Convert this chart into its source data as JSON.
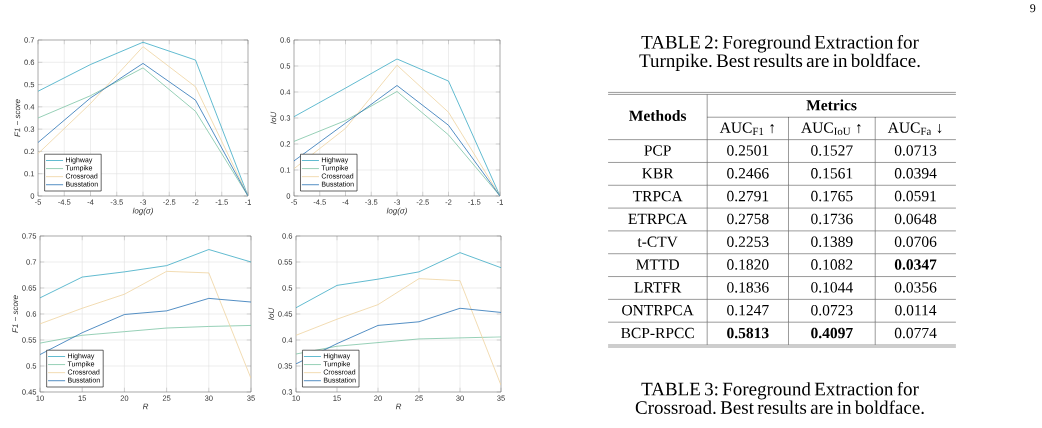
{
  "chart_data": [
    {
      "type": "line",
      "xlabel": "log(σ)",
      "ylabel": "F1 − score",
      "x": [
        -5,
        -4,
        -3,
        -2,
        -1
      ],
      "xlim": [
        -5,
        -1
      ],
      "xticks": [
        -5,
        -4.5,
        -4,
        -3.5,
        -3,
        -2.5,
        -2,
        -1.5,
        -1
      ],
      "ylim": [
        0,
        0.7
      ],
      "yticks": [
        0,
        0.1,
        0.2,
        0.3,
        0.4,
        0.5,
        0.6,
        0.7
      ],
      "grid": true,
      "legend": "bottom left",
      "series": [
        {
          "name": "Highway",
          "color": "#3aa9c4",
          "values": [
            0.47,
            0.59,
            0.69,
            0.61,
            0
          ]
        },
        {
          "name": "Turnpike",
          "color": "#7cc4a4",
          "values": [
            0.35,
            0.45,
            0.575,
            0.38,
            0
          ]
        },
        {
          "name": "Crossroad",
          "color": "#efd3a0",
          "values": [
            0.19,
            0.415,
            0.67,
            0.49,
            0
          ]
        },
        {
          "name": "Busstation",
          "color": "#2872b5",
          "values": [
            0.24,
            0.44,
            0.595,
            0.43,
            0
          ]
        }
      ]
    },
    {
      "type": "line",
      "xlabel": "log(σ)",
      "ylabel": "IoU",
      "x": [
        -5,
        -4,
        -3,
        -2,
        -1
      ],
      "xlim": [
        -5,
        -1
      ],
      "xticks": [
        -5,
        -4.5,
        -4,
        -3.5,
        -3,
        -2.5,
        -2,
        -1.5,
        -1
      ],
      "ylim": [
        0,
        0.6
      ],
      "yticks": [
        0,
        0.1,
        0.2,
        0.3,
        0.4,
        0.5,
        0.6
      ],
      "grid": true,
      "legend": "bottom left",
      "series": [
        {
          "name": "Highway",
          "color": "#3aa9c4",
          "values": [
            0.305,
            0.415,
            0.527,
            0.442,
            0
          ]
        },
        {
          "name": "Turnpike",
          "color": "#7cc4a4",
          "values": [
            0.21,
            0.29,
            0.402,
            0.235,
            0
          ]
        },
        {
          "name": "Crossroad",
          "color": "#efd3a0",
          "values": [
            0.105,
            0.26,
            0.503,
            0.322,
            0
          ]
        },
        {
          "name": "Busstation",
          "color": "#2872b5",
          "values": [
            0.135,
            0.28,
            0.425,
            0.272,
            0
          ]
        }
      ]
    },
    {
      "type": "line",
      "xlabel": "R",
      "ylabel": "F1 − score",
      "x": [
        10,
        15,
        20,
        25,
        30,
        35
      ],
      "xlim": [
        10,
        35
      ],
      "xticks": [
        10,
        15,
        20,
        25,
        30,
        35
      ],
      "ylim": [
        0.45,
        0.75
      ],
      "yticks": [
        0.45,
        0.5,
        0.55,
        0.6,
        0.65,
        0.7,
        0.75
      ],
      "grid": true,
      "legend": "bottom left",
      "series": [
        {
          "name": "Highway",
          "color": "#3aa9c4",
          "values": [
            0.631,
            0.671,
            0.681,
            0.693,
            0.724,
            0.7
          ]
        },
        {
          "name": "Turnpike",
          "color": "#7cc4a4",
          "values": [
            0.544,
            0.559,
            0.566,
            0.573,
            0.576,
            0.578
          ]
        },
        {
          "name": "Crossroad",
          "color": "#efd3a0",
          "values": [
            0.581,
            0.611,
            0.638,
            0.682,
            0.679,
            0.476
          ]
        },
        {
          "name": "Busstation",
          "color": "#2872b5",
          "values": [
            0.522,
            0.564,
            0.599,
            0.606,
            0.63,
            0.623
          ]
        }
      ]
    },
    {
      "type": "line",
      "xlabel": "R",
      "ylabel": "IoU",
      "x": [
        10,
        15,
        20,
        25,
        30,
        35
      ],
      "xlim": [
        10,
        35
      ],
      "xticks": [
        10,
        15,
        20,
        25,
        30,
        35
      ],
      "ylim": [
        0.3,
        0.6
      ],
      "yticks": [
        0.3,
        0.35,
        0.4,
        0.45,
        0.5,
        0.55,
        0.6
      ],
      "grid": true,
      "legend": "bottom left",
      "series": [
        {
          "name": "Highway",
          "color": "#3aa9c4",
          "values": [
            0.462,
            0.505,
            0.517,
            0.531,
            0.568,
            0.539
          ]
        },
        {
          "name": "Turnpike",
          "color": "#7cc4a4",
          "values": [
            0.373,
            0.388,
            0.395,
            0.402,
            0.404,
            0.406
          ]
        },
        {
          "name": "Crossroad",
          "color": "#efd3a0",
          "values": [
            0.409,
            0.44,
            0.468,
            0.518,
            0.514,
            0.313
          ]
        },
        {
          "name": "Busstation",
          "color": "#2872b5",
          "values": [
            0.354,
            0.393,
            0.428,
            0.435,
            0.461,
            0.453
          ]
        }
      ]
    },
    {
      "type": "other",
      "title": "TABLE 2: Foreground Extraction for Turnpike. Best results are in boldface.",
      "ylabel": "Methods",
      "xlabel": "Metrics",
      "categories": [
        "AUC$_{F1}$ ↑",
        "AUC$_{IoU}$ ↑",
        "AUC$_{Fa}$ ↓"
      ],
      "y_categories": [
        "PCP",
        "KBR",
        "TRPCA",
        "ETRPCA",
        "t-CTV",
        "MTTD",
        "LRTFR",
        "ONTRPCA",
        "BCP-RPCC"
      ],
      "cell_labels": [
        [
          "0.2501",
          "0.1527",
          "0.0713"
        ],
        [
          "0.2466",
          "0.1561",
          "0.0394"
        ],
        [
          "0.2791",
          "0.1765",
          "0.0591"
        ],
        [
          "0.2758",
          "0.1736",
          "0.0648"
        ],
        [
          "0.2253",
          "0.1389",
          "0.0706"
        ],
        [
          "0.1820",
          "0.1082",
          "**0.0347**"
        ],
        [
          "0.1836",
          "0.1044",
          "0.0356"
        ],
        [
          "0.1247",
          "0.0723",
          "0.0114"
        ],
        [
          "**0.5813**",
          "**0.4097**",
          "0.0774"
        ]
      ],
      "annotations": [
        "9",
        "TABLE 3: Foreground Extraction for Crossroad. Best results are in boldface."
      ]
    }
  ]
}
